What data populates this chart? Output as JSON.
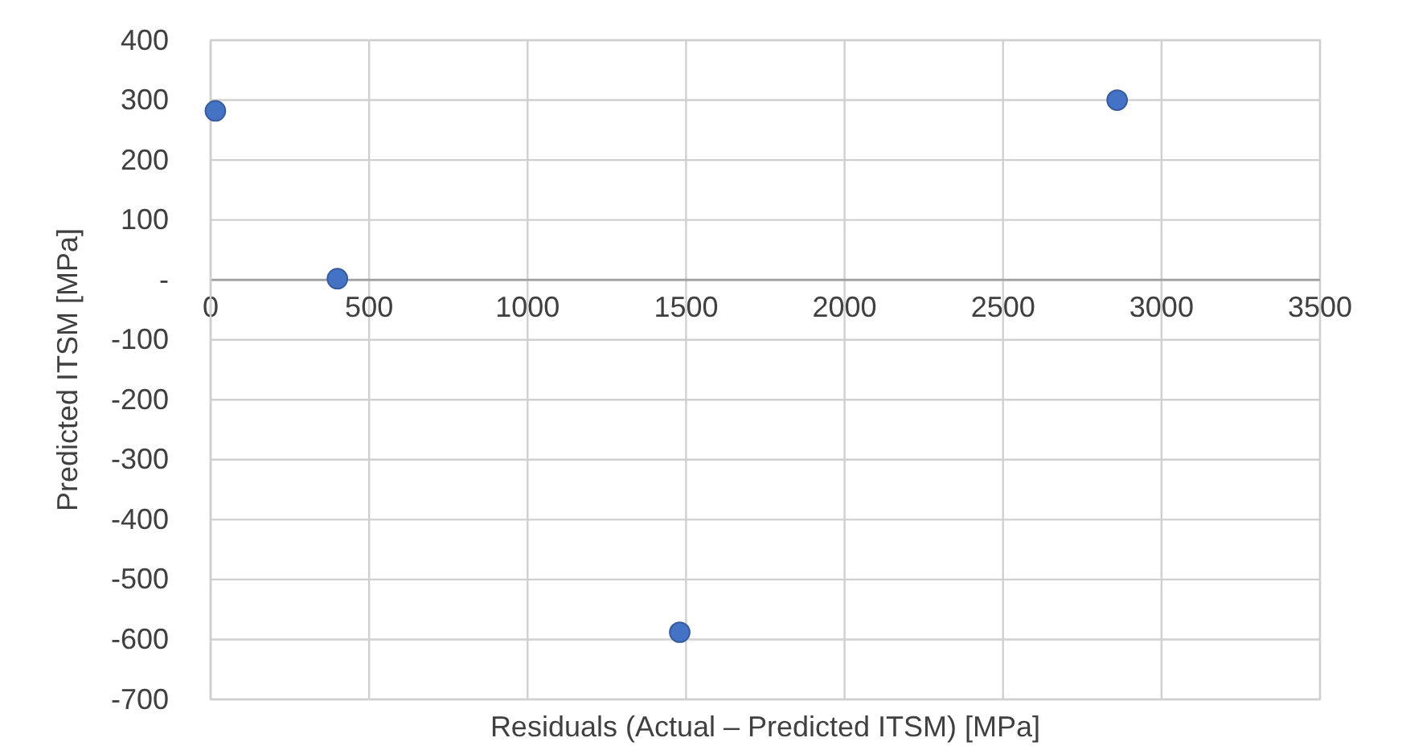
{
  "chart_data": {
    "type": "scatter",
    "xlabel": "Residuals (Actual – Predicted ITSM) [MPa]",
    "ylabel": "Predicted ITSM [MPa]",
    "x": [
      15,
      400,
      1480,
      2860
    ],
    "series": [
      {
        "color": "#4472c4",
        "values": [
          282,
          2,
          -588,
          300
        ]
      }
    ],
    "xlim": [
      0,
      3500
    ],
    "xticks": [
      0,
      500,
      1000,
      1500,
      2000,
      2500,
      3000,
      3500
    ],
    "ylim": [
      -700,
      400
    ],
    "yticks": [
      -700,
      -600,
      -500,
      -400,
      -300,
      -200,
      -100,
      {
        "value": 0,
        "label": "-"
      },
      100,
      200,
      300,
      400
    ],
    "grid": true,
    "marker": "circle"
  }
}
